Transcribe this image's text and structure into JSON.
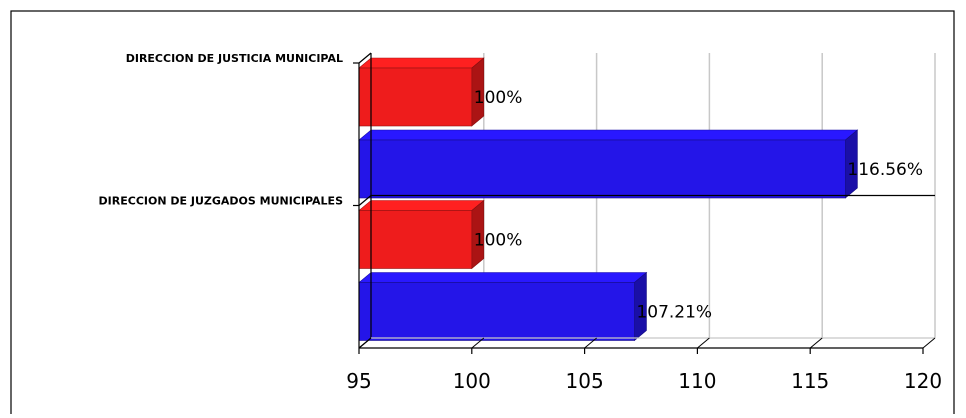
{
  "chart_data": {
    "type": "bar",
    "orientation": "horizontal",
    "categories": [
      "DIRECCION DE JUSTICIA MUNICIPAL",
      "DIRECCION DE JUZGADOS MUNICIPALES"
    ],
    "series": [
      {
        "values": [
          100,
          100
        ],
        "labels": [
          "100%",
          "100%"
        ],
        "color": "#ee1c1c"
      },
      {
        "values": [
          116.56,
          107.21
        ],
        "labels": [
          "116.56%",
          "107.21%"
        ],
        "color": "#2415e8"
      }
    ],
    "xlim": [
      95,
      120
    ],
    "xticks": [
      95,
      100,
      105,
      110,
      115,
      120
    ],
    "xtick_labels": [
      "95",
      "100",
      "105",
      "110",
      "115",
      "120"
    ],
    "grid": true,
    "style": "3d"
  }
}
